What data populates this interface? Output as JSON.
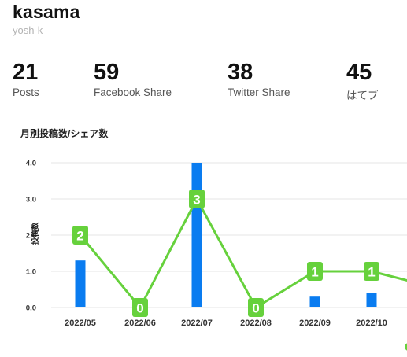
{
  "header": {
    "title": "kasama",
    "subtitle": "yosh-k"
  },
  "stats": [
    {
      "value": "21",
      "label": "Posts"
    },
    {
      "value": "59",
      "label": "Facebook Share"
    },
    {
      "value": "38",
      "label": "Twitter Share"
    },
    {
      "value": "45",
      "label": "はてブ"
    }
  ],
  "section": {
    "title": "月別投稿数/シェア数"
  },
  "chart_data": {
    "type": "bar",
    "categories": [
      "2022/05",
      "2022/06",
      "2022/07",
      "2022/08",
      "2022/09",
      "2022/10"
    ],
    "ylabel": "投稿数",
    "ylim": [
      0,
      4
    ],
    "yticks": [
      "0.0",
      "1.0",
      "2.0",
      "3.0",
      "4.0"
    ],
    "grid": true,
    "series": [
      {
        "type": "bar",
        "values": [
          1.3,
          0,
          4,
          0,
          0.3,
          0.4
        ],
        "color": "#0a7cf0"
      },
      {
        "type": "line",
        "values": [
          2,
          0,
          3,
          0,
          1,
          1
        ],
        "color": "#66d13c",
        "labels": [
          "2",
          "0",
          "3",
          "0",
          "1",
          "1"
        ]
      }
    ]
  }
}
